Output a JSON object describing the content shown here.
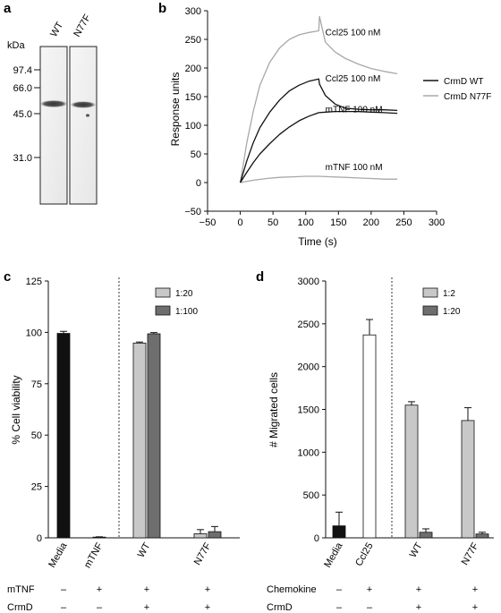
{
  "panels": {
    "a": {
      "letter": "a",
      "unit": "kDa",
      "lanes": [
        "WT",
        "N77F"
      ],
      "markers": [
        "97.4",
        "66.0",
        "45.0",
        "31.0"
      ],
      "marker_values": [
        97.4,
        66.0,
        45.0,
        31.0
      ]
    },
    "b": {
      "letter": "b"
    },
    "c": {
      "letter": "c"
    },
    "d": {
      "letter": "d"
    }
  },
  "chart_data": [
    {
      "panel": "b",
      "type": "line",
      "xlabel": "Time (s)",
      "ylabel": "Response units",
      "xlim": [
        -50,
        300
      ],
      "ylim": [
        -50,
        300
      ],
      "xticks": [
        -50,
        0,
        50,
        100,
        150,
        200,
        250,
        300
      ],
      "yticks": [
        -50,
        0,
        50,
        100,
        150,
        200,
        250,
        300
      ],
      "legend": {
        "placement": "right",
        "entries": [
          "CrmD WT",
          "CrmD N77F"
        ]
      },
      "colors": {
        "CrmD WT": "#111111",
        "CrmD N77F": "#a8a8a8"
      },
      "series": [
        {
          "name": "CrmD WT",
          "label": "Ccl25 100 nM",
          "x": [
            0,
            10,
            20,
            30,
            45,
            60,
            75,
            90,
            105,
            120,
            121,
            130,
            145,
            160,
            180,
            200,
            220,
            240
          ],
          "y": [
            0,
            38,
            70,
            96,
            123,
            144,
            160,
            170,
            177,
            181,
            172,
            152,
            137,
            130,
            128,
            127,
            127,
            126
          ]
        },
        {
          "name": "CrmD WT",
          "label": "mTNF 100 nM",
          "x": [
            0,
            10,
            20,
            30,
            45,
            60,
            75,
            90,
            105,
            120,
            130,
            145,
            160,
            180,
            200,
            220,
            240
          ],
          "y": [
            0,
            18,
            35,
            50,
            68,
            84,
            97,
            108,
            116,
            122,
            123,
            124,
            124,
            124,
            123,
            122,
            121
          ]
        },
        {
          "name": "CrmD N77F",
          "label": "Ccl25 100 nM",
          "x": [
            0,
            10,
            20,
            30,
            45,
            60,
            75,
            90,
            105,
            120,
            121,
            130,
            145,
            160,
            180,
            200,
            220,
            240
          ],
          "y": [
            0,
            70,
            125,
            170,
            210,
            235,
            250,
            258,
            262,
            265,
            290,
            245,
            228,
            217,
            207,
            199,
            194,
            190
          ]
        },
        {
          "name": "CrmD N77F",
          "label": "mTNF 100 nM",
          "x": [
            0,
            20,
            40,
            60,
            80,
            100,
            120,
            140,
            160,
            180,
            200,
            220,
            240
          ],
          "y": [
            0,
            4,
            7,
            9,
            10,
            11,
            11,
            10,
            9,
            8,
            7,
            6,
            6
          ]
        }
      ]
    },
    {
      "panel": "c",
      "type": "bar",
      "ylabel": "% Cell viability",
      "ylim": [
        0,
        125
      ],
      "yticks": [
        0,
        25,
        50,
        75,
        100,
        125
      ],
      "categories": [
        "Media",
        "mTNF",
        "WT",
        "N77F"
      ],
      "legend": {
        "placement": "top-right",
        "entries": [
          "1:20",
          "1:100"
        ]
      },
      "colors": {
        "single": "#111111",
        "1:20": "#c8c8c8",
        "1:100": "#6e6e6e"
      },
      "bars": [
        {
          "category": "Media",
          "series": "single",
          "value": 99.5,
          "error": 1.0,
          "color": "#111111"
        },
        {
          "category": "mTNF",
          "series": "single",
          "value": 0.3,
          "error": 0.2,
          "color": "#111111"
        },
        {
          "category": "WT",
          "series": "1:20",
          "value": 94.8,
          "error": 0.5,
          "color": "#c8c8c8"
        },
        {
          "category": "WT",
          "series": "1:100",
          "value": 99.3,
          "error": 0.6,
          "color": "#6e6e6e"
        },
        {
          "category": "N77F",
          "series": "1:20",
          "value": 2.0,
          "error": 2.0,
          "color": "#c8c8c8"
        },
        {
          "category": "N77F",
          "series": "1:100",
          "value": 3.0,
          "error": 2.5,
          "color": "#6e6e6e"
        }
      ],
      "conditions": [
        {
          "label": "mTNF",
          "marks": [
            "–",
            "+",
            "+",
            "+"
          ]
        },
        {
          "label": "CrmD",
          "marks": [
            "–",
            "–",
            "+",
            "+"
          ]
        }
      ]
    },
    {
      "panel": "d",
      "type": "bar",
      "ylabel": "# Migrated cells",
      "ylim": [
        0,
        3000
      ],
      "yticks": [
        0,
        500,
        1000,
        1500,
        2000,
        2500,
        3000
      ],
      "categories": [
        "Media",
        "Ccl25",
        "WT",
        "N77F"
      ],
      "legend": {
        "placement": "top-right",
        "entries": [
          "1:2",
          "1:20"
        ]
      },
      "colors": {
        "Media": "#111111",
        "Ccl25": "#ffffff",
        "1:2": "#c8c8c8",
        "1:20": "#6e6e6e"
      },
      "bars": [
        {
          "category": "Media",
          "series": "single",
          "value": 140,
          "error": 160,
          "color": "#111111"
        },
        {
          "category": "Ccl25",
          "series": "single",
          "value": 2370,
          "error": 180,
          "color": "#ffffff"
        },
        {
          "category": "WT",
          "series": "1:2",
          "value": 1550,
          "error": 40,
          "color": "#c8c8c8"
        },
        {
          "category": "WT",
          "series": "1:20",
          "value": 65,
          "error": 40,
          "color": "#6e6e6e"
        },
        {
          "category": "N77F",
          "series": "1:2",
          "value": 1370,
          "error": 150,
          "color": "#c8c8c8"
        },
        {
          "category": "N77F",
          "series": "1:20",
          "value": 45,
          "error": 20,
          "color": "#6e6e6e"
        }
      ],
      "conditions": [
        {
          "label": "Chemokine",
          "marks": [
            "–",
            "+",
            "+",
            "+"
          ]
        },
        {
          "label": "CrmD",
          "marks": [
            "–",
            "–",
            "+",
            "+"
          ]
        }
      ]
    }
  ]
}
